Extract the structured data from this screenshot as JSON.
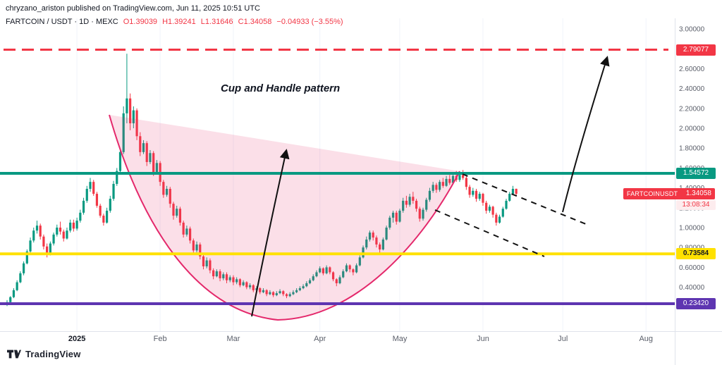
{
  "header": {
    "attribution": "chryzano_ariston published on TradingView.com, Jun 11, 2025 10:51 UTC"
  },
  "legend": {
    "symbol": "FARTCOIN / USDT · 1D · MEXC",
    "open": "O1.39039",
    "high": "H1.39241",
    "low": "L1.31646",
    "close": "C1.34058",
    "change": "−0.04933 (−3.55%)"
  },
  "annotation": {
    "pattern_label": "Cup and Handle pattern"
  },
  "badges": {
    "target": {
      "value": "2.79077"
    },
    "neckline": {
      "value": "1.54572"
    },
    "last_price": {
      "ticker": "FARTCOINUSDT",
      "value": "1.34058",
      "countdown": "13:08:34"
    },
    "mid_support": {
      "value": "0.73584"
    },
    "low_support": {
      "value": "0.23420"
    }
  },
  "footer": {
    "brand": "TradingView"
  },
  "colors": {
    "up": "#089981",
    "down": "#F23645",
    "target_line": "#F23645",
    "neckline_line": "#089981",
    "mid_support_line": "#FFE100",
    "low_support_line": "#5E35B1",
    "cup_fill": "rgba(231,57,115,0.16)",
    "cup_stroke": "#E4286B",
    "drawing_black": "#111111"
  },
  "chart_data": {
    "type": "candlestick",
    "title": "FARTCOIN / USDT · 1D · MEXC",
    "pattern": "Cup and Handle",
    "up_color": "#089981",
    "down_color": "#F23645",
    "ylim": [
      0,
      3.1
    ],
    "y_ticks": [
      "3.00000",
      "2.60000",
      "2.40000",
      "2.20000",
      "2.00000",
      "1.80000",
      "1.60000",
      "1.40000",
      "1.20000",
      "1.00000",
      "0.80000",
      "0.60000",
      "0.40000"
    ],
    "x_ticks": [
      {
        "label": "2025",
        "index": 21
      },
      {
        "label": "Feb",
        "index": 46
      },
      {
        "label": "Mar",
        "index": 68
      },
      {
        "label": "Apr",
        "index": 94
      },
      {
        "label": "May",
        "index": 118
      },
      {
        "label": "Jun",
        "index": 143
      },
      {
        "label": "Jul",
        "index": 167
      },
      {
        "label": "Aug",
        "index": 192
      }
    ],
    "levels": [
      {
        "name": "target",
        "price": 2.79077,
        "color": "#F23645",
        "style": "dashed",
        "width": 3
      },
      {
        "name": "neckline",
        "price": 1.54572,
        "color": "#089981",
        "style": "solid",
        "width": 4
      },
      {
        "name": "mid-support",
        "price": 0.73584,
        "color": "#FFE100",
        "style": "solid",
        "width": 4
      },
      {
        "name": "low-support",
        "price": 0.2342,
        "color": "#5E35B1",
        "style": "solid",
        "width": 4
      }
    ],
    "last_candle": {
      "open": 1.39039,
      "high": 1.39241,
      "low": 1.31646,
      "close": 1.34058,
      "change": -0.04933,
      "change_pct": -3.55
    },
    "candles": [
      [
        0.23,
        0.27,
        0.21,
        0.25
      ],
      [
        0.25,
        0.31,
        0.24,
        0.3
      ],
      [
        0.3,
        0.39,
        0.29,
        0.37
      ],
      [
        0.37,
        0.47,
        0.36,
        0.45
      ],
      [
        0.45,
        0.56,
        0.44,
        0.54
      ],
      [
        0.54,
        0.66,
        0.52,
        0.64
      ],
      [
        0.64,
        0.78,
        0.63,
        0.76
      ],
      [
        0.76,
        0.9,
        0.74,
        0.87
      ],
      [
        0.87,
        1.0,
        0.85,
        0.97
      ],
      [
        0.97,
        1.07,
        0.94,
        1.02
      ],
      [
        1.02,
        1.04,
        0.88,
        0.91
      ],
      [
        0.91,
        0.93,
        0.78,
        0.81
      ],
      [
        0.81,
        0.84,
        0.7,
        0.73
      ],
      [
        0.73,
        0.86,
        0.72,
        0.84
      ],
      [
        0.84,
        0.95,
        0.82,
        0.93
      ],
      [
        0.93,
        1.03,
        0.91,
        1.0
      ],
      [
        1.0,
        1.06,
        0.93,
        0.96
      ],
      [
        0.96,
        0.98,
        0.86,
        0.89
      ],
      [
        0.89,
        1.0,
        0.88,
        0.97
      ],
      [
        0.97,
        1.08,
        0.95,
        1.05
      ],
      [
        1.05,
        1.08,
        0.96,
        0.99
      ],
      [
        0.99,
        1.1,
        0.97,
        1.07
      ],
      [
        1.07,
        1.18,
        1.05,
        1.15
      ],
      [
        1.15,
        1.3,
        1.13,
        1.27
      ],
      [
        1.27,
        1.42,
        1.25,
        1.39
      ],
      [
        1.39,
        1.5,
        1.36,
        1.46
      ],
      [
        1.46,
        1.48,
        1.32,
        1.34
      ],
      [
        1.34,
        1.36,
        1.2,
        1.22
      ],
      [
        1.22,
        1.24,
        1.1,
        1.12
      ],
      [
        1.12,
        1.14,
        1.02,
        1.05
      ],
      [
        1.05,
        1.2,
        1.04,
        1.17
      ],
      [
        1.17,
        1.32,
        1.15,
        1.29
      ],
      [
        1.29,
        1.47,
        1.27,
        1.44
      ],
      [
        1.44,
        1.6,
        1.42,
        1.57
      ],
      [
        1.57,
        1.8,
        1.55,
        1.76
      ],
      [
        1.76,
        2.22,
        1.74,
        2.15
      ],
      [
        2.15,
        2.75,
        2.05,
        2.3
      ],
      [
        2.3,
        2.35,
        1.98,
        2.05
      ],
      [
        2.05,
        2.22,
        2.0,
        2.18
      ],
      [
        2.18,
        2.2,
        1.88,
        1.92
      ],
      [
        1.92,
        1.96,
        1.72,
        1.76
      ],
      [
        1.76,
        1.88,
        1.74,
        1.85
      ],
      [
        1.85,
        1.87,
        1.62,
        1.66
      ],
      [
        1.66,
        1.78,
        1.64,
        1.75
      ],
      [
        1.75,
        1.77,
        1.52,
        1.56
      ],
      [
        1.56,
        1.68,
        1.54,
        1.65
      ],
      [
        1.65,
        1.67,
        1.42,
        1.46
      ],
      [
        1.46,
        1.48,
        1.3,
        1.33
      ],
      [
        1.33,
        1.42,
        1.31,
        1.39
      ],
      [
        1.39,
        1.41,
        1.2,
        1.24
      ],
      [
        1.24,
        1.26,
        1.08,
        1.12
      ],
      [
        1.12,
        1.22,
        1.1,
        1.19
      ],
      [
        1.19,
        1.21,
        1.02,
        1.05
      ],
      [
        1.05,
        1.07,
        0.9,
        0.93
      ],
      [
        0.93,
        1.02,
        0.91,
        0.99
      ],
      [
        0.99,
        1.01,
        0.84,
        0.87
      ],
      [
        0.87,
        0.89,
        0.74,
        0.77
      ],
      [
        0.77,
        0.86,
        0.75,
        0.83
      ],
      [
        0.83,
        0.85,
        0.68,
        0.71
      ],
      [
        0.71,
        0.73,
        0.58,
        0.61
      ],
      [
        0.61,
        0.7,
        0.59,
        0.67
      ],
      [
        0.67,
        0.69,
        0.54,
        0.57
      ],
      [
        0.57,
        0.59,
        0.48,
        0.51
      ],
      [
        0.51,
        0.58,
        0.5,
        0.56
      ],
      [
        0.56,
        0.58,
        0.46,
        0.49
      ],
      [
        0.49,
        0.55,
        0.47,
        0.53
      ],
      [
        0.53,
        0.55,
        0.44,
        0.47
      ],
      [
        0.47,
        0.52,
        0.45,
        0.5
      ],
      [
        0.5,
        0.52,
        0.42,
        0.45
      ],
      [
        0.45,
        0.5,
        0.43,
        0.48
      ],
      [
        0.48,
        0.49,
        0.4,
        0.42
      ],
      [
        0.42,
        0.47,
        0.41,
        0.45
      ],
      [
        0.45,
        0.46,
        0.38,
        0.4
      ],
      [
        0.4,
        0.44,
        0.38,
        0.42
      ],
      [
        0.42,
        0.43,
        0.35,
        0.37
      ],
      [
        0.37,
        0.41,
        0.36,
        0.39
      ],
      [
        0.39,
        0.4,
        0.33,
        0.35
      ],
      [
        0.35,
        0.39,
        0.34,
        0.37
      ],
      [
        0.37,
        0.38,
        0.31,
        0.33
      ],
      [
        0.33,
        0.37,
        0.32,
        0.35
      ],
      [
        0.35,
        0.36,
        0.3,
        0.32
      ],
      [
        0.32,
        0.36,
        0.31,
        0.34
      ],
      [
        0.34,
        0.38,
        0.33,
        0.36
      ],
      [
        0.36,
        0.37,
        0.31,
        0.33
      ],
      [
        0.33,
        0.34,
        0.29,
        0.31
      ],
      [
        0.31,
        0.35,
        0.3,
        0.33
      ],
      [
        0.33,
        0.37,
        0.32,
        0.35
      ],
      [
        0.35,
        0.39,
        0.34,
        0.37
      ],
      [
        0.37,
        0.41,
        0.36,
        0.39
      ],
      [
        0.39,
        0.43,
        0.38,
        0.41
      ],
      [
        0.41,
        0.46,
        0.4,
        0.44
      ],
      [
        0.44,
        0.49,
        0.43,
        0.47
      ],
      [
        0.47,
        0.53,
        0.46,
        0.51
      ],
      [
        0.51,
        0.57,
        0.5,
        0.55
      ],
      [
        0.55,
        0.61,
        0.54,
        0.59
      ],
      [
        0.59,
        0.6,
        0.52,
        0.54
      ],
      [
        0.54,
        0.62,
        0.53,
        0.6
      ],
      [
        0.6,
        0.61,
        0.53,
        0.55
      ],
      [
        0.55,
        0.56,
        0.46,
        0.48
      ],
      [
        0.48,
        0.49,
        0.41,
        0.44
      ],
      [
        0.44,
        0.52,
        0.43,
        0.5
      ],
      [
        0.5,
        0.58,
        0.49,
        0.56
      ],
      [
        0.56,
        0.64,
        0.55,
        0.62
      ],
      [
        0.62,
        0.63,
        0.55,
        0.58
      ],
      [
        0.58,
        0.59,
        0.52,
        0.55
      ],
      [
        0.55,
        0.64,
        0.54,
        0.62
      ],
      [
        0.62,
        0.72,
        0.61,
        0.7
      ],
      [
        0.7,
        0.82,
        0.69,
        0.8
      ],
      [
        0.8,
        0.91,
        0.78,
        0.88
      ],
      [
        0.88,
        0.97,
        0.86,
        0.95
      ],
      [
        0.95,
        0.97,
        0.87,
        0.9
      ],
      [
        0.9,
        0.92,
        0.8,
        0.83
      ],
      [
        0.83,
        0.85,
        0.74,
        0.78
      ],
      [
        0.78,
        0.9,
        0.77,
        0.88
      ],
      [
        0.88,
        1.02,
        0.87,
        1.0
      ],
      [
        1.0,
        1.12,
        0.98,
        1.1
      ],
      [
        1.1,
        1.17,
        1.05,
        1.15
      ],
      [
        1.15,
        1.17,
        1.03,
        1.06
      ],
      [
        1.06,
        1.19,
        1.05,
        1.17
      ],
      [
        1.17,
        1.3,
        1.15,
        1.27
      ],
      [
        1.27,
        1.32,
        1.2,
        1.23
      ],
      [
        1.23,
        1.34,
        1.21,
        1.31
      ],
      [
        1.31,
        1.36,
        1.24,
        1.27
      ],
      [
        1.27,
        1.29,
        1.16,
        1.19
      ],
      [
        1.19,
        1.21,
        1.06,
        1.09
      ],
      [
        1.09,
        1.2,
        1.07,
        1.18
      ],
      [
        1.18,
        1.3,
        1.16,
        1.28
      ],
      [
        1.28,
        1.4,
        1.26,
        1.37
      ],
      [
        1.37,
        1.46,
        1.35,
        1.43
      ],
      [
        1.43,
        1.45,
        1.35,
        1.38
      ],
      [
        1.38,
        1.48,
        1.36,
        1.46
      ],
      [
        1.46,
        1.5,
        1.4,
        1.42
      ],
      [
        1.42,
        1.52,
        1.41,
        1.49
      ],
      [
        1.49,
        1.53,
        1.43,
        1.45
      ],
      [
        1.45,
        1.55,
        1.44,
        1.52
      ],
      [
        1.52,
        1.57,
        1.46,
        1.48
      ],
      [
        1.48,
        1.56,
        1.46,
        1.53
      ],
      [
        1.53,
        1.58,
        1.48,
        1.5
      ],
      [
        1.5,
        1.52,
        1.38,
        1.41
      ],
      [
        1.41,
        1.43,
        1.3,
        1.33
      ],
      [
        1.33,
        1.4,
        1.31,
        1.37
      ],
      [
        1.37,
        1.39,
        1.26,
        1.29
      ],
      [
        1.29,
        1.36,
        1.27,
        1.34
      ],
      [
        1.34,
        1.35,
        1.22,
        1.25
      ],
      [
        1.25,
        1.27,
        1.14,
        1.17
      ],
      [
        1.17,
        1.23,
        1.15,
        1.21
      ],
      [
        1.21,
        1.22,
        1.1,
        1.13
      ],
      [
        1.13,
        1.15,
        1.02,
        1.05
      ],
      [
        1.05,
        1.13,
        1.04,
        1.11
      ],
      [
        1.11,
        1.21,
        1.1,
        1.19
      ],
      [
        1.19,
        1.29,
        1.18,
        1.27
      ],
      [
        1.27,
        1.36,
        1.26,
        1.34
      ],
      [
        1.34,
        1.42,
        1.33,
        1.39
      ],
      [
        1.39039,
        1.39241,
        1.31646,
        1.34058
      ]
    ]
  }
}
